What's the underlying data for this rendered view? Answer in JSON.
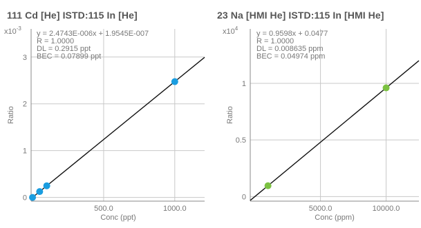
{
  "chart_data": [
    {
      "type": "scatter",
      "title": "111 Cd [He] ISTD:115 In [He]",
      "xlabel": "Conc (ppt)",
      "ylabel": "Ratio",
      "y_multiplier": "x10",
      "y_multiplier_exp": "-3",
      "xlim": [
        -10,
        1210
      ],
      "ylim": [
        -0.08,
        3.6
      ],
      "xticks": [
        {
          "v": 500,
          "label": "500.0"
        },
        {
          "v": 1000,
          "label": "1000.0"
        }
      ],
      "yticks": [
        {
          "v": 0,
          "label": "0"
        },
        {
          "v": 1,
          "label": "1"
        },
        {
          "v": 2,
          "label": "2"
        },
        {
          "v": 3,
          "label": "3"
        }
      ],
      "grid": true,
      "point_color": "#1a9de0",
      "fit": {
        "slope": 0.0024743,
        "intercept": 0.00019545
      },
      "points": [
        {
          "x": 0,
          "y": 0
        },
        {
          "x": 50,
          "y": 0.124
        },
        {
          "x": 100,
          "y": 0.248
        },
        {
          "x": 1000,
          "y": 2.474
        }
      ],
      "annotations": [
        "y = 2.4743E-006x + 1.9545E-007",
        "R = 1.0000",
        "DL = 0.2915 ppt",
        "BEC = 0.07899 ppt"
      ]
    },
    {
      "type": "scatter",
      "title": "23 Na [HMI He] ISTD:115 In [HMI He]",
      "xlabel": "Conc (ppm)",
      "ylabel": "Ratio",
      "y_multiplier": "x10",
      "y_multiplier_exp": "4",
      "xlim": [
        -350,
        12500
      ],
      "ylim": [
        -0.04,
        1.48
      ],
      "xticks": [
        {
          "v": 5000,
          "label": "5000.0"
        },
        {
          "v": 10000,
          "label": "10000.0"
        }
      ],
      "yticks": [
        {
          "v": 0,
          "label": "0"
        },
        {
          "v": 0.5,
          "label": "0.5"
        },
        {
          "v": 1,
          "label": "1"
        }
      ],
      "grid": true,
      "point_color": "#7cc242",
      "fit": {
        "slope": 9.598e-05,
        "intercept": 4.77e-06
      },
      "points": [
        {
          "x": 1000,
          "y": 0.096
        },
        {
          "x": 10000,
          "y": 0.9598
        }
      ],
      "annotations": [
        "y = 0.9598x + 0.0477",
        "R = 1.0000",
        "DL = 0.008635 ppm",
        "BEC = 0.04974 ppm"
      ]
    }
  ]
}
